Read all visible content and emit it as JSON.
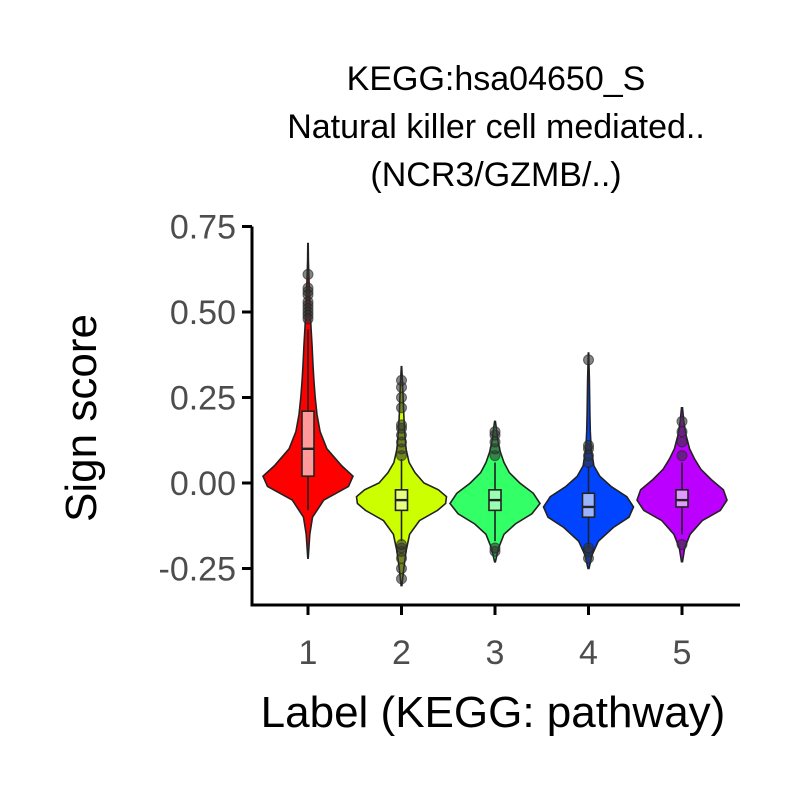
{
  "chart_data": {
    "type": "violin",
    "title_lines": [
      "KEGG:hsa04650_S",
      "Natural killer cell mediated..",
      "(NCR3/GZMB/..)"
    ],
    "xlabel": "Label (KEGG: pathway)",
    "ylabel": "Sign score",
    "ylim": [
      -0.35,
      0.75
    ],
    "y_ticks": [
      0.75,
      0.5,
      0.25,
      0.0,
      -0.25
    ],
    "y_tick_labels": [
      "0.75",
      "0.50",
      "0.25",
      "0.00",
      "-0.25"
    ],
    "categories": [
      "1",
      "2",
      "3",
      "4",
      "5"
    ],
    "grid": false,
    "legend": "none",
    "series": [
      {
        "category": "1",
        "color": "#ff0000",
        "box_color": "#ff9a9a",
        "min": -0.22,
        "max": 0.7,
        "q1": 0.02,
        "median": 0.1,
        "q3": 0.21,
        "whisker_low": -0.08,
        "whisker_high": 0.45,
        "density": [
          [
            -0.22,
            0.005
          ],
          [
            -0.15,
            0.04
          ],
          [
            -0.1,
            0.1
          ],
          [
            -0.05,
            0.35
          ],
          [
            -0.01,
            0.9
          ],
          [
            0.02,
            1.0
          ],
          [
            0.05,
            0.75
          ],
          [
            0.1,
            0.42
          ],
          [
            0.15,
            0.27
          ],
          [
            0.2,
            0.2
          ],
          [
            0.25,
            0.16
          ],
          [
            0.3,
            0.13
          ],
          [
            0.35,
            0.11
          ],
          [
            0.4,
            0.09
          ],
          [
            0.45,
            0.07
          ],
          [
            0.5,
            0.05
          ],
          [
            0.55,
            0.035
          ],
          [
            0.6,
            0.02
          ],
          [
            0.65,
            0.01
          ],
          [
            0.7,
            0.004
          ]
        ],
        "outliers": [
          0.61,
          0.57,
          0.56,
          0.55,
          0.53,
          0.52,
          0.51,
          0.5,
          0.49,
          0.48
        ]
      },
      {
        "category": "2",
        "color": "#ccff00",
        "box_color": "#e6ff80",
        "min": -0.3,
        "max": 0.34,
        "q1": -0.08,
        "median": -0.05,
        "q3": -0.02,
        "whisker_low": -0.17,
        "whisker_high": 0.07,
        "density": [
          [
            -0.3,
            0.01
          ],
          [
            -0.25,
            0.05
          ],
          [
            -0.2,
            0.1
          ],
          [
            -0.15,
            0.18
          ],
          [
            -0.11,
            0.4
          ],
          [
            -0.08,
            0.8
          ],
          [
            -0.06,
            0.98
          ],
          [
            -0.04,
            1.0
          ],
          [
            -0.02,
            0.82
          ],
          [
            0.0,
            0.5
          ],
          [
            0.03,
            0.3
          ],
          [
            0.06,
            0.17
          ],
          [
            0.1,
            0.1
          ],
          [
            0.15,
            0.07
          ],
          [
            0.2,
            0.05
          ],
          [
            0.25,
            0.035
          ],
          [
            0.3,
            0.02
          ],
          [
            0.34,
            0.005
          ]
        ],
        "outliers": [
          -0.28,
          -0.25,
          -0.22,
          -0.2,
          -0.19,
          -0.18,
          0.08,
          0.1,
          0.12,
          0.14,
          0.16,
          0.17,
          0.22,
          0.25,
          0.28,
          0.3
        ]
      },
      {
        "category": "3",
        "color": "#33ff66",
        "box_color": "#99ffb3",
        "min": -0.23,
        "max": 0.18,
        "q1": -0.08,
        "median": -0.05,
        "q3": -0.02,
        "whisker_low": -0.17,
        "whisker_high": 0.06,
        "density": [
          [
            -0.23,
            0.01
          ],
          [
            -0.19,
            0.08
          ],
          [
            -0.15,
            0.2
          ],
          [
            -0.12,
            0.45
          ],
          [
            -0.09,
            0.82
          ],
          [
            -0.06,
            1.0
          ],
          [
            -0.03,
            0.85
          ],
          [
            0.0,
            0.55
          ],
          [
            0.03,
            0.32
          ],
          [
            0.06,
            0.2
          ],
          [
            0.09,
            0.12
          ],
          [
            0.12,
            0.07
          ],
          [
            0.15,
            0.04
          ],
          [
            0.18,
            0.01
          ]
        ],
        "outliers": [
          -0.2,
          -0.19,
          0.08,
          0.1,
          0.12,
          0.14,
          0.15
        ]
      },
      {
        "category": "4",
        "color": "#0044ff",
        "box_color": "#99b3ff",
        "min": -0.25,
        "max": 0.38,
        "q1": -0.1,
        "median": -0.07,
        "q3": -0.03,
        "whisker_low": -0.19,
        "whisker_high": 0.05,
        "density": [
          [
            -0.25,
            0.01
          ],
          [
            -0.21,
            0.08
          ],
          [
            -0.17,
            0.22
          ],
          [
            -0.13,
            0.55
          ],
          [
            -0.1,
            0.9
          ],
          [
            -0.07,
            1.0
          ],
          [
            -0.04,
            0.85
          ],
          [
            -0.01,
            0.5
          ],
          [
            0.02,
            0.25
          ],
          [
            0.05,
            0.12
          ],
          [
            0.1,
            0.06
          ],
          [
            0.15,
            0.04
          ],
          [
            0.2,
            0.03
          ],
          [
            0.3,
            0.02
          ],
          [
            0.38,
            0.004
          ]
        ],
        "outliers": [
          -0.22,
          -0.2,
          -0.19,
          0.06,
          0.08,
          0.1,
          0.11,
          0.36
        ]
      },
      {
        "category": "5",
        "color": "#bb00ff",
        "box_color": "#e099ff",
        "min": -0.23,
        "max": 0.22,
        "q1": -0.07,
        "median": -0.05,
        "q3": -0.02,
        "whisker_low": -0.15,
        "whisker_high": 0.06,
        "density": [
          [
            -0.23,
            0.01
          ],
          [
            -0.19,
            0.06
          ],
          [
            -0.15,
            0.18
          ],
          [
            -0.11,
            0.45
          ],
          [
            -0.08,
            0.85
          ],
          [
            -0.05,
            1.0
          ],
          [
            -0.02,
            0.92
          ],
          [
            0.01,
            0.65
          ],
          [
            0.04,
            0.42
          ],
          [
            0.07,
            0.28
          ],
          [
            0.1,
            0.17
          ],
          [
            0.14,
            0.09
          ],
          [
            0.18,
            0.04
          ],
          [
            0.22,
            0.01
          ]
        ],
        "outliers": [
          -0.18,
          0.08,
          0.12,
          0.15,
          0.18
        ]
      }
    ]
  }
}
